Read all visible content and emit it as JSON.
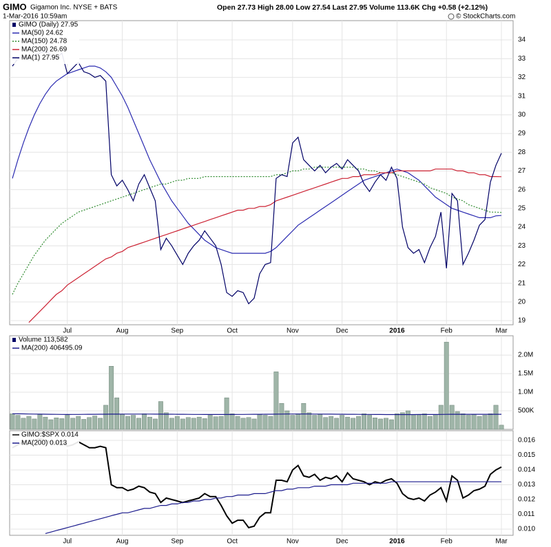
{
  "header": {
    "symbol": "GIMO",
    "name": "Gigamon Inc. NYSE + BATS",
    "date": "1-Mar-2016 10:59am",
    "quote": "Open 27.73 High 28.00 Low 27.54 Last 27.95 Volume 113.6K Chg +0.58 (+2.12%)",
    "credit": "© StockCharts.com"
  },
  "chart_data": [
    {
      "type": "line",
      "title": "GIMO (Daily) 27.95",
      "categories": [
        null,
        null,
        null,
        null,
        null,
        null,
        null,
        null,
        null,
        null,
        "Jul",
        null,
        null,
        null,
        null,
        null,
        null,
        null,
        null,
        null,
        "Aug",
        null,
        null,
        null,
        null,
        null,
        null,
        null,
        null,
        null,
        "Sep",
        null,
        null,
        null,
        null,
        null,
        null,
        null,
        null,
        null,
        "Oct",
        null,
        null,
        null,
        null,
        null,
        null,
        null,
        null,
        null,
        null,
        "Nov",
        null,
        null,
        null,
        null,
        null,
        null,
        null,
        null,
        "Dec",
        null,
        null,
        null,
        null,
        null,
        null,
        null,
        null,
        null,
        "2016",
        null,
        null,
        null,
        null,
        null,
        null,
        null,
        null,
        "Feb",
        null,
        null,
        null,
        null,
        null,
        null,
        null,
        null,
        null,
        "Mar"
      ],
      "ylim": [
        18.78,
        35.03
      ],
      "yticks": [
        19,
        20,
        21,
        22,
        23,
        24,
        25,
        26,
        27,
        28,
        29,
        30,
        31,
        32,
        33,
        34
      ],
      "grid": true,
      "series": [
        {
          "name": "MA(50) 24.62",
          "color": "#2a2ab0",
          "values": [
            26.6,
            27.6,
            28.5,
            29.3,
            30.0,
            30.6,
            31.1,
            31.5,
            31.8,
            32.0,
            32.2,
            32.3,
            32.4,
            32.5,
            32.6,
            32.6,
            32.5,
            32.3,
            32.0,
            31.5,
            31.0,
            30.4,
            29.7,
            29.0,
            28.3,
            27.6,
            27.0,
            26.4,
            25.9,
            25.4,
            25.0,
            24.6,
            24.2,
            23.9,
            23.6,
            23.3,
            23.1,
            22.9,
            22.8,
            22.7,
            22.6,
            22.6,
            22.6,
            22.6,
            22.6,
            22.6,
            22.6,
            22.7,
            22.9,
            23.2,
            23.5,
            23.8,
            24.1,
            24.3,
            24.5,
            24.7,
            24.9,
            25.1,
            25.3,
            25.5,
            25.7,
            25.9,
            26.1,
            26.3,
            26.5,
            26.6,
            26.7,
            26.8,
            26.9,
            27.0,
            27.1,
            27.0,
            26.9,
            26.7,
            26.5,
            26.2,
            25.9,
            25.6,
            25.4,
            25.2,
            25.0,
            24.9,
            24.8,
            24.7,
            24.6,
            24.5,
            24.5,
            24.5,
            24.6,
            24.62
          ]
        },
        {
          "name": "MA(150) 24.78",
          "color": "#2e8b2e",
          "style": "dotted",
          "values": [
            20.4,
            21.0,
            21.5,
            22.0,
            22.5,
            22.9,
            23.3,
            23.6,
            23.9,
            24.2,
            24.4,
            24.6,
            24.8,
            24.9,
            25.0,
            25.1,
            25.2,
            25.3,
            25.4,
            25.5,
            25.6,
            25.7,
            25.8,
            25.9,
            26.0,
            26.1,
            26.2,
            26.3,
            26.3,
            26.4,
            26.5,
            26.5,
            26.6,
            26.6,
            26.6,
            26.7,
            26.7,
            26.7,
            26.7,
            26.7,
            26.7,
            26.7,
            26.7,
            26.7,
            26.7,
            26.7,
            26.7,
            26.7,
            26.8,
            26.8,
            26.9,
            27.0,
            27.0,
            27.1,
            27.1,
            27.2,
            27.2,
            27.2,
            27.2,
            27.2,
            27.2,
            27.2,
            27.2,
            27.1,
            27.1,
            27.0,
            27.0,
            26.9,
            26.9,
            26.9,
            26.8,
            26.7,
            26.6,
            26.5,
            26.4,
            26.3,
            26.1,
            26.0,
            25.9,
            25.8,
            25.6,
            25.5,
            25.4,
            25.2,
            25.1,
            25.0,
            24.9,
            24.8,
            24.8,
            24.78
          ]
        },
        {
          "name": "MA(200) 26.69",
          "color": "#cc2233",
          "values": [
            null,
            null,
            null,
            18.9,
            19.2,
            19.5,
            19.8,
            20.1,
            20.4,
            20.6,
            20.9,
            21.1,
            21.3,
            21.5,
            21.7,
            21.9,
            22.1,
            22.3,
            22.4,
            22.6,
            22.7,
            22.9,
            23.0,
            23.1,
            23.2,
            23.3,
            23.4,
            23.5,
            23.6,
            23.7,
            23.8,
            23.9,
            24.0,
            24.1,
            24.2,
            24.3,
            24.4,
            24.5,
            24.6,
            24.7,
            24.8,
            24.9,
            24.9,
            25.0,
            25.0,
            25.1,
            25.1,
            25.2,
            25.4,
            25.5,
            25.6,
            25.7,
            25.8,
            25.9,
            26.0,
            26.1,
            26.2,
            26.3,
            26.4,
            26.5,
            26.6,
            26.6,
            26.7,
            26.7,
            26.8,
            26.8,
            26.8,
            26.9,
            26.9,
            26.9,
            27.0,
            27.0,
            27.0,
            27.0,
            27.0,
            27.0,
            27.0,
            27.1,
            27.1,
            27.1,
            27.1,
            27.0,
            27.0,
            26.9,
            26.9,
            26.8,
            26.8,
            26.7,
            26.7,
            26.69
          ]
        },
        {
          "name": "MA(1) 27.95",
          "color": "#000066",
          "values": [
            32.6,
            33.0,
            33.1,
            33.0,
            33.2,
            33.3,
            33.4,
            33.2,
            33.0,
            33.3,
            32.2,
            32.5,
            32.8,
            32.3,
            32.2,
            32.0,
            32.1,
            31.8,
            26.8,
            26.2,
            26.5,
            26.0,
            25.4,
            26.3,
            26.8,
            26.1,
            25.4,
            22.8,
            23.4,
            23.0,
            22.5,
            22.0,
            22.6,
            23.0,
            23.3,
            23.8,
            23.4,
            23.0,
            22.0,
            20.5,
            20.3,
            20.6,
            20.5,
            19.9,
            20.2,
            21.5,
            22.0,
            22.1,
            26.6,
            26.8,
            26.7,
            28.5,
            28.8,
            27.6,
            27.3,
            27.0,
            27.3,
            26.9,
            27.2,
            27.4,
            27.1,
            27.6,
            27.3,
            27.0,
            26.3,
            25.9,
            26.4,
            26.8,
            26.5,
            27.2,
            26.6,
            24.0,
            22.9,
            22.6,
            22.8,
            22.1,
            22.9,
            23.5,
            24.8,
            21.8,
            25.8,
            25.4,
            22.0,
            22.6,
            23.3,
            24.1,
            24.4,
            26.4,
            27.3,
            27.95
          ]
        }
      ]
    },
    {
      "type": "bar",
      "title": "Volume 113,582",
      "ylim": [
        0,
        2520000
      ],
      "yticks": [
        {
          "value": 500000,
          "label": "500K"
        },
        {
          "value": 1000000,
          "label": "1.0M"
        },
        {
          "value": 1500000,
          "label": "1.5M"
        },
        {
          "value": 2000000,
          "label": "2.0M"
        }
      ],
      "grid": true,
      "series": [
        {
          "color": "#9fb5a8",
          "values": [
            420000,
            380000,
            300000,
            350000,
            280000,
            400000,
            330000,
            260000,
            310000,
            290000,
            380000,
            300000,
            350000,
            270000,
            320000,
            360000,
            300000,
            650000,
            1700000,
            850000,
            400000,
            350000,
            380000,
            300000,
            420000,
            330000,
            280000,
            750000,
            450000,
            300000,
            350000,
            280000,
            320000,
            300000,
            330000,
            290000,
            380000,
            340000,
            350000,
            850000,
            420000,
            350000,
            300000,
            320000,
            280000,
            400000,
            380000,
            350000,
            1550000,
            700000,
            500000,
            380000,
            420000,
            700000,
            450000,
            380000,
            400000,
            320000,
            350000,
            300000,
            380000,
            330000,
            300000,
            350000,
            420000,
            380000,
            310000,
            280000,
            300000,
            260000,
            420000,
            450000,
            500000,
            400000,
            380000,
            420000,
            350000,
            400000,
            650000,
            2350000,
            650000,
            480000,
            420000,
            380000,
            400000,
            350000,
            380000,
            420000,
            650000,
            113582
          ]
        },
        {
          "name": "MA(200) 406495.09",
          "color": "#1a1a8c",
          "type": "line",
          "values": [
            420000,
            418000,
            416000,
            414000,
            412000,
            410000,
            408000,
            406000,
            404000,
            402000,
            401000,
            402000,
            403000,
            404000,
            405000,
            406000,
            407000,
            408000,
            409000,
            410000,
            411000,
            412000,
            412000,
            412000,
            412000,
            411000,
            410000,
            409000,
            408000,
            407000,
            406000,
            405000,
            404000,
            403000,
            402000,
            401000,
            400000,
            400000,
            400000,
            400000,
            401000,
            402000,
            403000,
            404000,
            405000,
            406000,
            407000,
            408000,
            410000,
            412000,
            413000,
            414000,
            414000,
            414000,
            413000,
            412000,
            411000,
            410000,
            409000,
            408000,
            407000,
            406000,
            405000,
            404000,
            403000,
            402000,
            401000,
            400000,
            399000,
            398000,
            398000,
            398000,
            399000,
            399000,
            400000,
            400000,
            401000,
            401000,
            402000,
            404000,
            405000,
            405000,
            405000,
            405000,
            405000,
            406000,
            406000,
            406000,
            406000,
            406495.09
          ]
        }
      ]
    },
    {
      "type": "line",
      "categories": [
        null,
        null,
        null,
        null,
        null,
        null,
        null,
        null,
        null,
        null,
        "Jul",
        null,
        null,
        null,
        null,
        null,
        null,
        null,
        null,
        null,
        "Aug",
        null,
        null,
        null,
        null,
        null,
        null,
        null,
        null,
        null,
        "Sep",
        null,
        null,
        null,
        null,
        null,
        null,
        null,
        null,
        null,
        "Oct",
        null,
        null,
        null,
        null,
        null,
        null,
        null,
        null,
        null,
        null,
        "Nov",
        null,
        null,
        null,
        null,
        null,
        null,
        null,
        null,
        "Dec",
        null,
        null,
        null,
        null,
        null,
        null,
        null,
        null,
        null,
        "2016",
        null,
        null,
        null,
        null,
        null,
        null,
        null,
        null,
        "Feb",
        null,
        null,
        null,
        null,
        null,
        null,
        null,
        null,
        null,
        "Mar"
      ],
      "ylim": [
        0.00958,
        0.01665
      ],
      "yticks": [
        {
          "value": 0.01,
          "label": "0.010"
        },
        0.011,
        0.012,
        0.013,
        0.014,
        0.015,
        0.016
      ],
      "grid": true,
      "series": [
        {
          "name": "GIMO:$SPX 0.014",
          "color": "#000000",
          "width": 2,
          "values": [
            0.0155,
            0.0157,
            0.0159,
            0.016,
            0.016,
            0.0161,
            0.016,
            0.0159,
            0.0158,
            0.016,
            0.0156,
            0.0157,
            0.0159,
            0.0157,
            0.0155,
            0.0155,
            0.0156,
            0.0155,
            0.013,
            0.0128,
            0.0128,
            0.0126,
            0.0127,
            0.0129,
            0.0128,
            0.0125,
            0.0124,
            0.0118,
            0.0121,
            0.012,
            0.0119,
            0.0118,
            0.0119,
            0.012,
            0.0121,
            0.0124,
            0.0122,
            0.0122,
            0.0116,
            0.0109,
            0.0104,
            0.0106,
            0.0106,
            0.0101,
            0.0102,
            0.0108,
            0.0111,
            0.0111,
            0.0133,
            0.0133,
            0.0132,
            0.014,
            0.0143,
            0.0136,
            0.0135,
            0.0137,
            0.0133,
            0.0135,
            0.0134,
            0.0136,
            0.0132,
            0.0138,
            0.0134,
            0.0133,
            0.0132,
            0.013,
            0.0132,
            0.0131,
            0.0133,
            0.0134,
            0.0131,
            0.0124,
            0.0121,
            0.012,
            0.0121,
            0.0119,
            0.0123,
            0.0125,
            0.0128,
            0.0119,
            0.0136,
            0.0133,
            0.0121,
            0.0123,
            0.0126,
            0.0127,
            0.0129,
            0.0137,
            0.014,
            0.0142
          ]
        },
        {
          "name": "MA(200) 0.013",
          "color": "#1a1a8c",
          "values": [
            null,
            null,
            null,
            null,
            null,
            null,
            0.0097,
            0.0098,
            0.0099,
            0.01,
            0.0101,
            0.0102,
            0.0103,
            0.0104,
            0.0105,
            0.0106,
            0.0107,
            0.0108,
            0.0109,
            0.011,
            0.0111,
            0.0111,
            0.0112,
            0.0113,
            0.0114,
            0.0114,
            0.0115,
            0.0116,
            0.0116,
            0.0117,
            0.0117,
            0.0118,
            0.0118,
            0.0119,
            0.0119,
            0.012,
            0.012,
            0.0121,
            0.0121,
            0.0122,
            0.0122,
            0.0123,
            0.0123,
            0.0123,
            0.0124,
            0.0124,
            0.0124,
            0.0125,
            0.0126,
            0.0126,
            0.0127,
            0.0127,
            0.0128,
            0.0128,
            0.0128,
            0.0129,
            0.0129,
            0.0129,
            0.013,
            0.013,
            0.013,
            0.013,
            0.0131,
            0.0131,
            0.0131,
            0.0131,
            0.0131,
            0.0131,
            0.0131,
            0.0132,
            0.0132,
            0.0132,
            0.0132,
            0.0132,
            0.0132,
            0.0132,
            0.0132,
            0.0132,
            0.0132,
            0.0132,
            0.0132,
            0.0132,
            0.0132,
            0.0132,
            0.0132,
            0.0132,
            0.0132,
            0.0132,
            0.0132,
            0.0132
          ]
        }
      ]
    }
  ]
}
